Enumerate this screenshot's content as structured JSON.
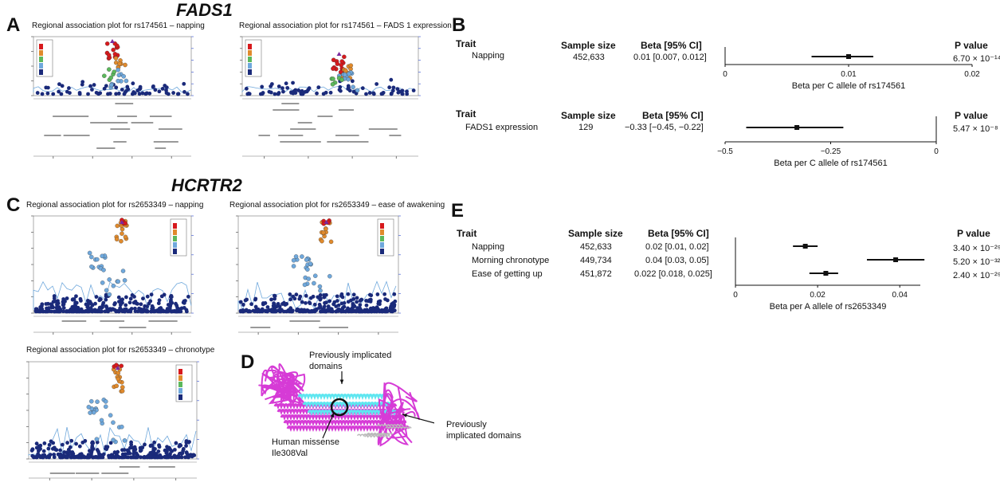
{
  "genes": {
    "fads1": "FADS1",
    "hcrtr2": "HCRTR2"
  },
  "panels": {
    "a": "A",
    "b": "B",
    "c": "C",
    "d": "D",
    "e": "E"
  },
  "regional_plots": [
    {
      "title": "Regional association plot for rs174561 – napping"
    },
    {
      "title": "Regional association plot for rs174561 – FADS 1 expression"
    },
    {
      "title": "Regional association plot for rs2653349 – napping"
    },
    {
      "title": "Regional association plot for rs2653349 – ease of awakening"
    },
    {
      "title": "Regional association plot for rs2653349 – chronotype"
    }
  ],
  "forest_b1": {
    "headers": {
      "trait": "Trait",
      "sample_size": "Sample size",
      "beta": "Beta [95% CI]",
      "pvalue": "P value"
    },
    "rows": [
      {
        "trait": "Napping",
        "n": "452,633",
        "beta": "0.01 [0.007, 0.012]",
        "p": "6.70 × 10⁻¹⁴",
        "est": 0.01,
        "lo": 0.007,
        "hi": 0.012
      }
    ],
    "ticks": [
      "0",
      "0.01",
      "0.02"
    ],
    "xlabel": "Beta per C allele of rs174561"
  },
  "forest_b2": {
    "headers": {
      "trait": "Trait",
      "sample_size": "Sample size",
      "beta": "Beta [95% CI]",
      "pvalue": "P value"
    },
    "rows": [
      {
        "trait": "FADS1 expression",
        "n": "129",
        "beta": "−0.33 [−0.45, −0.22]",
        "p": "5.47 × 10⁻⁸",
        "est": -0.33,
        "lo": -0.45,
        "hi": -0.22
      }
    ],
    "ticks": [
      "−0.5",
      "−0.25",
      "0"
    ],
    "xlabel": "Beta per C allele of rs174561"
  },
  "forest_e": {
    "headers": {
      "trait": "Trait",
      "sample_size": "Sample size",
      "beta": "Beta [95% CI]",
      "pvalue": "P value"
    },
    "rows": [
      {
        "trait": "Napping",
        "n": "452,633",
        "beta": "0.02 [0.01, 0.02]",
        "p": "3.40 × 10⁻²⁹",
        "est": 0.017,
        "lo": 0.014,
        "hi": 0.02
      },
      {
        "trait": "Morning chronotype",
        "n": "449,734",
        "beta": "0.04 [0.03, 0.05]",
        "p": "5.20 × 10⁻³²",
        "est": 0.039,
        "lo": 0.032,
        "hi": 0.046
      },
      {
        "trait": "Ease of getting up",
        "n": "451,872",
        "beta": "0.022 [0.018, 0.025]",
        "p": "2.40 × 10⁻²⁹",
        "est": 0.022,
        "lo": 0.018,
        "hi": 0.025
      }
    ],
    "ticks": [
      "0",
      "0.02",
      "0.04"
    ],
    "xlabel": "Beta per A allele of rs2653349"
  },
  "structure": {
    "label_top": "Previously implicated\ndomains",
    "label_right": "Previously\nimplicated domains",
    "label_bottom": "Human missense\nIle308Val"
  },
  "colors": {
    "magenta": "#d63bd6",
    "cyan": "#5fe6f0",
    "red": "#d7191c",
    "orange": "#e08a2c",
    "lightblue": "#6fa8dc",
    "navy": "#1a2a7a"
  }
}
